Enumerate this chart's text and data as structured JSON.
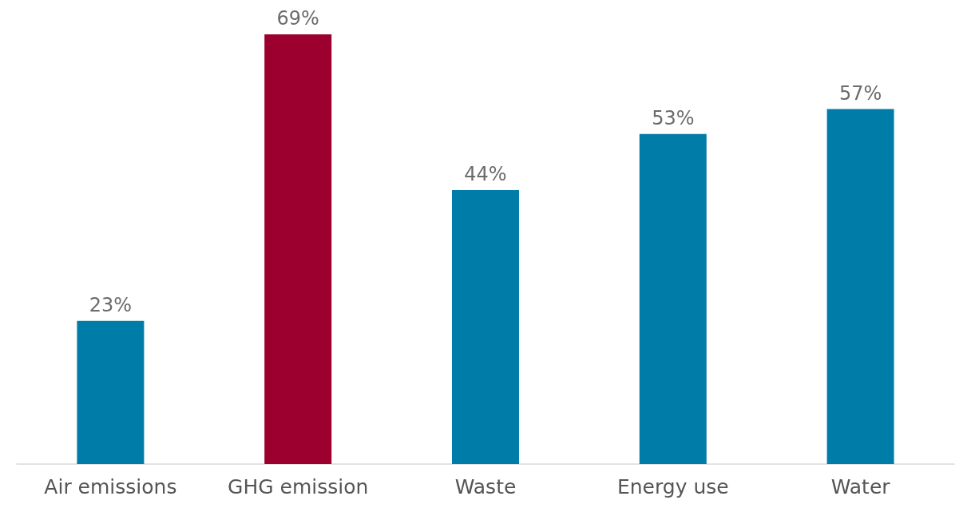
{
  "chart_data": {
    "type": "bar",
    "categories": [
      "Air emissions",
      "GHG emission",
      "Waste",
      "Energy use",
      "Water"
    ],
    "values": [
      23,
      69,
      44,
      53,
      57
    ],
    "value_labels": [
      "23%",
      "69%",
      "44%",
      "53%",
      "57%"
    ],
    "colors": [
      "#007ca9",
      "#9b002e",
      "#007ca9",
      "#007ca9",
      "#007ca9"
    ]
  }
}
